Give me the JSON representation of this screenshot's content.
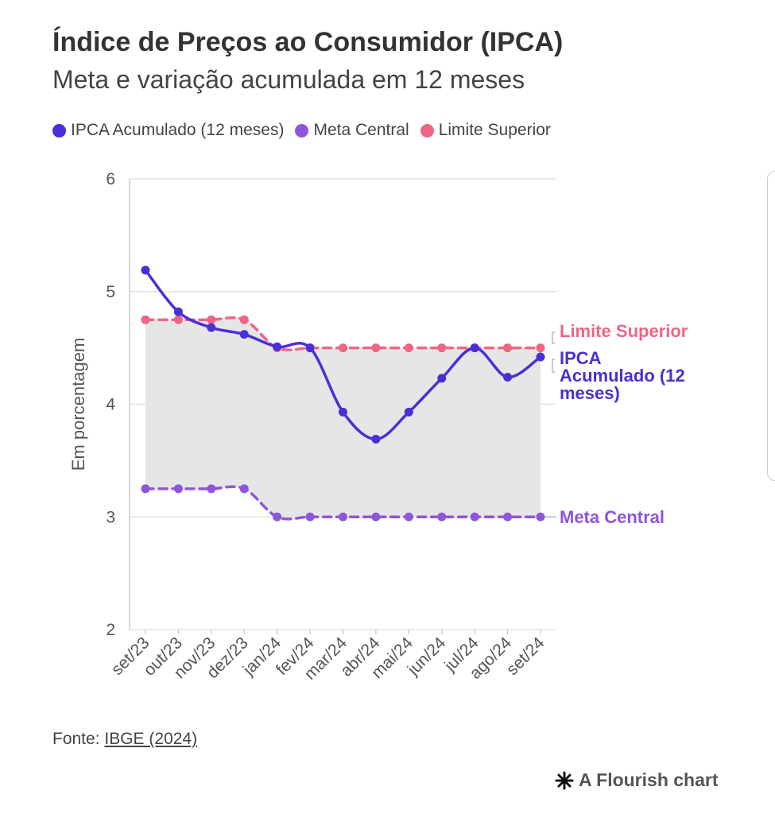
{
  "header": {
    "title": "Índice de Preços ao Consumidor (IPCA)",
    "subtitle": "Meta e variação acumulada em 12 meses"
  },
  "footer": {
    "source_prefix": "Fonte: ",
    "source_link": "IBGE (2024)",
    "flourish": "A Flourish chart"
  },
  "chart_data": {
    "type": "line",
    "title": "Índice de Preços ao Consumidor (IPCA)",
    "subtitle": "Meta e variação acumulada em 12 meses",
    "xlabel": "",
    "ylabel": "Em porcentagem",
    "ylim": [
      2,
      6
    ],
    "yticks": [
      "2",
      "3",
      "4",
      "5",
      "6"
    ],
    "grid": true,
    "legend": "top-left",
    "categories": [
      "set/23",
      "out/23",
      "nov/23",
      "dez/23",
      "jan/24",
      "fev/24",
      "mar/24",
      "abr/24",
      "mai/24",
      "jun/24",
      "jul/24",
      "ago/24",
      "set/24"
    ],
    "series": [
      {
        "name": "IPCA Acumulado (12 meses)",
        "label": "IPCA Acumulado (12 meses)",
        "color": "#4a2fd6",
        "dashed": false,
        "values": [
          5.19,
          4.82,
          4.68,
          4.62,
          4.51,
          4.5,
          3.93,
          3.69,
          3.93,
          4.23,
          4.5,
          4.24,
          4.42
        ]
      },
      {
        "name": "Meta Central",
        "label": "Meta Central",
        "color": "#8f55dd",
        "dashed": true,
        "values": [
          3.25,
          3.25,
          3.25,
          3.25,
          3.0,
          3.0,
          3.0,
          3.0,
          3.0,
          3.0,
          3.0,
          3.0,
          3.0
        ]
      },
      {
        "name": "Limite Superior",
        "label": "Limite Superior",
        "color": "#ef6585",
        "dashed": true,
        "values": [
          4.75,
          4.75,
          4.75,
          4.75,
          4.5,
          4.5,
          4.5,
          4.5,
          4.5,
          4.5,
          4.5,
          4.5,
          4.5
        ]
      }
    ],
    "shaded_band": {
      "between": [
        "Meta Central",
        "Limite Superior"
      ],
      "color": "#e6e6e6"
    }
  }
}
